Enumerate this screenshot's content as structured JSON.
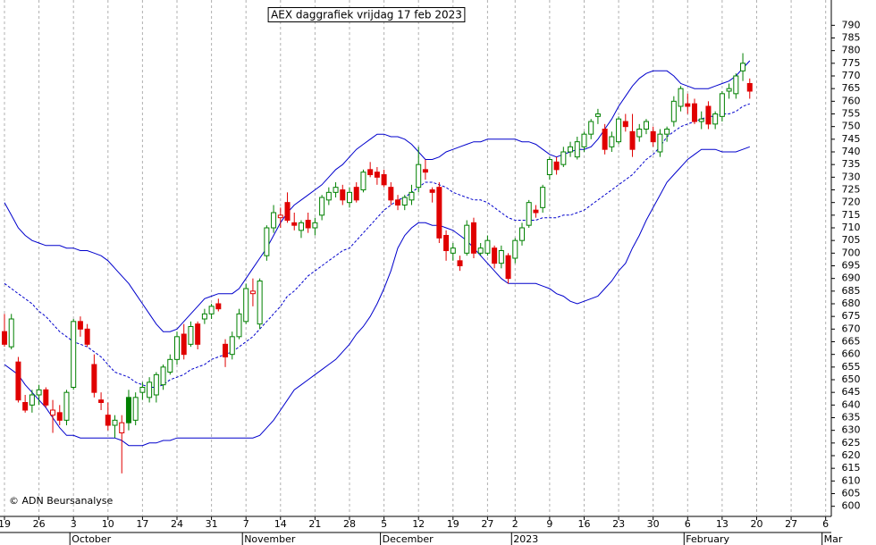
{
  "chart_data": {
    "type": "candlestick",
    "title": "AEX daggrafiek vrijdag 17 feb 2023",
    "copyright": "© ADN Beursanalyse",
    "categories": [
      "19",
      null,
      null,
      null,
      null,
      "26",
      null,
      null,
      null,
      null,
      "3",
      null,
      null,
      null,
      null,
      "10",
      null,
      null,
      null,
      null,
      "17",
      null,
      null,
      null,
      null,
      "24",
      null,
      null,
      null,
      null,
      "31",
      null,
      null,
      null,
      null,
      "7",
      null,
      null,
      null,
      null,
      "14",
      null,
      null,
      null,
      null,
      "21",
      null,
      null,
      null,
      null,
      "28",
      null,
      null,
      null,
      null,
      "5",
      null,
      null,
      null,
      null,
      "12",
      null,
      null,
      null,
      null,
      "19",
      null,
      null,
      null,
      null,
      "27",
      null,
      null,
      null,
      "2",
      null,
      null,
      null,
      null,
      "9",
      null,
      null,
      null,
      null,
      "16",
      null,
      null,
      null,
      null,
      "23",
      null,
      null,
      null,
      null,
      "30",
      null,
      null,
      null,
      null,
      "6",
      null,
      null,
      null,
      null,
      "13",
      null,
      null,
      null,
      null,
      "20",
      null,
      null,
      null,
      null,
      "27",
      null,
      null,
      null,
      null,
      "6"
    ],
    "month_labels": [
      "October",
      "November",
      "December",
      "2023",
      "February",
      "Mar"
    ],
    "open": [
      669,
      663,
      657,
      641,
      640,
      644,
      646,
      636,
      637,
      634,
      647,
      673,
      670,
      656,
      642,
      636,
      632,
      629,
      643,
      634,
      645,
      643,
      644,
      648,
      653,
      658,
      668,
      664,
      672,
      674,
      676,
      680,
      664,
      660,
      667,
      673,
      684,
      672,
      699,
      710,
      714,
      720,
      712,
      709,
      713,
      710,
      715,
      721,
      724,
      725,
      720,
      726,
      725,
      733,
      732,
      731,
      726,
      721,
      719,
      721,
      726,
      733,
      725,
      726,
      707,
      700,
      697,
      700,
      712,
      700,
      700,
      702,
      696,
      699,
      698,
      705,
      711,
      717,
      718,
      731,
      736,
      735,
      740,
      738,
      742,
      747,
      754,
      749,
      742,
      744,
      752,
      748,
      746,
      749,
      748,
      740,
      747,
      752,
      758,
      759,
      759,
      752,
      758,
      751,
      754,
      764,
      763,
      772,
      767,
      null,
      null,
      null,
      null,
      null,
      null,
      null,
      null,
      null,
      null,
      null
    ],
    "high": [
      676,
      676,
      659,
      644,
      646,
      648,
      647,
      642,
      640,
      646,
      674,
      675,
      672,
      660,
      645,
      641,
      636,
      636,
      646,
      645,
      649,
      651,
      653,
      656,
      660,
      669,
      672,
      673,
      673,
      678,
      680,
      682,
      666,
      669,
      678,
      688,
      690,
      690,
      711,
      719,
      718,
      724,
      716,
      713,
      716,
      714,
      723,
      726,
      728,
      727,
      726,
      728,
      733,
      736,
      734,
      733,
      728,
      723,
      723,
      727,
      742,
      737,
      726,
      728,
      709,
      704,
      699,
      713,
      714,
      704,
      707,
      703,
      703,
      700,
      706,
      712,
      721,
      719,
      727,
      738,
      738,
      742,
      744,
      746,
      748,
      753,
      757,
      751,
      748,
      754,
      755,
      755,
      751,
      753,
      750,
      749,
      750,
      762,
      766,
      763,
      761,
      756,
      760,
      756,
      764,
      767,
      771,
      779,
      769,
      null,
      null,
      null,
      null,
      null,
      null,
      null,
      null,
      null,
      null,
      null
    ],
    "low": [
      663,
      662,
      641,
      637,
      637,
      640,
      639,
      629,
      632,
      632,
      646,
      667,
      663,
      643,
      638,
      630,
      627,
      613,
      630,
      632,
      642,
      641,
      641,
      646,
      652,
      656,
      658,
      663,
      662,
      672,
      674,
      677,
      655,
      658,
      666,
      672,
      679,
      670,
      697,
      708,
      710,
      712,
      709,
      706,
      708,
      707,
      713,
      719,
      722,
      719,
      718,
      720,
      724,
      730,
      727,
      726,
      719,
      717,
      717,
      719,
      724,
      729,
      720,
      704,
      697,
      697,
      693,
      699,
      698,
      699,
      699,
      694,
      694,
      688,
      696,
      703,
      710,
      714,
      716,
      729,
      731,
      734,
      738,
      737,
      740,
      745,
      751,
      739,
      740,
      743,
      748,
      738,
      744,
      747,
      742,
      738,
      744,
      750,
      756,
      755,
      751,
      749,
      749,
      749,
      752,
      761,
      761,
      768,
      761,
      null,
      null,
      null,
      null,
      null,
      null,
      null,
      null,
      null,
      null,
      null
    ],
    "close": [
      664,
      674,
      642,
      638,
      644,
      646,
      640,
      638,
      634,
      645,
      673,
      670,
      664,
      645,
      641,
      632,
      634,
      633,
      633,
      643,
      647,
      649,
      652,
      655,
      658,
      667,
      660,
      671,
      664,
      676,
      679,
      678,
      659,
      667,
      676,
      686,
      685,
      689,
      710,
      716,
      715,
      713,
      711,
      712,
      710,
      712,
      722,
      724,
      726,
      721,
      724,
      721,
      732,
      731,
      730,
      727,
      721,
      719,
      722,
      724,
      735,
      732,
      724,
      706,
      701,
      702,
      695,
      711,
      700,
      702,
      705,
      696,
      701,
      690,
      705,
      710,
      720,
      716,
      726,
      737,
      733,
      740,
      742,
      744,
      747,
      752,
      755,
      741,
      746,
      753,
      750,
      741,
      749,
      752,
      744,
      747,
      749,
      760,
      765,
      758,
      752,
      753,
      751,
      755,
      763,
      765,
      770,
      775,
      764,
      null,
      null,
      null,
      null,
      null,
      null,
      null,
      null,
      null,
      null,
      null
    ],
    "up_color": "#008000",
    "down_color": "#e00000",
    "bands": {
      "color": "#0000cc",
      "upper": [
        720,
        715,
        710,
        707,
        705,
        704,
        703,
        703,
        703,
        702,
        702,
        701,
        701,
        700,
        699,
        697,
        694,
        691,
        688,
        684,
        680,
        676,
        672,
        669,
        669,
        670,
        673,
        676,
        679,
        682,
        683,
        684,
        684,
        684,
        686,
        690,
        694,
        698,
        702,
        707,
        712,
        716,
        719,
        721,
        723,
        725,
        727,
        730,
        733,
        735,
        738,
        741,
        743,
        745,
        747,
        747,
        746,
        746,
        745,
        743,
        740,
        737,
        737,
        738,
        740,
        741,
        742,
        743,
        744,
        744,
        745,
        745,
        745,
        745,
        745,
        744,
        744,
        743,
        741,
        739,
        738,
        739,
        740,
        741,
        741,
        742,
        745,
        749,
        753,
        758,
        762,
        766,
        769,
        771,
        772,
        772,
        772,
        770,
        767,
        766,
        765,
        765,
        765,
        766,
        767,
        768,
        770,
        773,
        776,
        null,
        null,
        null,
        null,
        null,
        null,
        null,
        null,
        null,
        null,
        null
      ],
      "middle": [
        688,
        686,
        684,
        682,
        680,
        677,
        675,
        672,
        669,
        667,
        665,
        664,
        663,
        661,
        659,
        656,
        653,
        652,
        651,
        649,
        648,
        647,
        647,
        648,
        650,
        651,
        652,
        654,
        655,
        656,
        658,
        659,
        660,
        661,
        663,
        665,
        667,
        670,
        673,
        676,
        679,
        683,
        685,
        688,
        691,
        693,
        695,
        697,
        699,
        701,
        702,
        705,
        708,
        711,
        714,
        717,
        719,
        721,
        722,
        724,
        726,
        728,
        728,
        727,
        726,
        724,
        723,
        722,
        721,
        721,
        720,
        718,
        716,
        714,
        713,
        713,
        713,
        713,
        714,
        714,
        714,
        715,
        715,
        716,
        717,
        719,
        721,
        723,
        725,
        727,
        729,
        731,
        734,
        737,
        739,
        742,
        746,
        748,
        750,
        751,
        752,
        753,
        754,
        754,
        755,
        755,
        756,
        758,
        759,
        null,
        null,
        null,
        null,
        null,
        null,
        null,
        null,
        null,
        null,
        null
      ],
      "lower": [
        656,
        654,
        652,
        648,
        645,
        642,
        639,
        635,
        631,
        628,
        628,
        627,
        627,
        627,
        627,
        627,
        627,
        626,
        624,
        624,
        624,
        625,
        625,
        626,
        626,
        627,
        627,
        627,
        627,
        627,
        627,
        627,
        627,
        627,
        627,
        627,
        627,
        628,
        631,
        634,
        638,
        642,
        646,
        648,
        650,
        652,
        654,
        656,
        658,
        661,
        664,
        668,
        671,
        675,
        680,
        686,
        693,
        702,
        707,
        710,
        712,
        712,
        711,
        711,
        710,
        709,
        707,
        705,
        702,
        699,
        696,
        693,
        690,
        688,
        688,
        688,
        688,
        688,
        687,
        686,
        684,
        683,
        681,
        680,
        681,
        682,
        683,
        686,
        689,
        693,
        696,
        702,
        707,
        713,
        718,
        723,
        728,
        731,
        734,
        737,
        739,
        741,
        741,
        741,
        740,
        740,
        740,
        741,
        742,
        null,
        null,
        null,
        null,
        null,
        null,
        null,
        null,
        null,
        null,
        null
      ]
    },
    "ylim": [
      596,
      800
    ],
    "yticks": [
      600,
      605,
      610,
      615,
      620,
      625,
      630,
      635,
      640,
      645,
      650,
      655,
      660,
      665,
      670,
      675,
      680,
      685,
      690,
      695,
      700,
      705,
      710,
      715,
      720,
      725,
      730,
      735,
      740,
      745,
      750,
      755,
      760,
      765,
      770,
      775,
      780,
      785,
      790
    ]
  }
}
